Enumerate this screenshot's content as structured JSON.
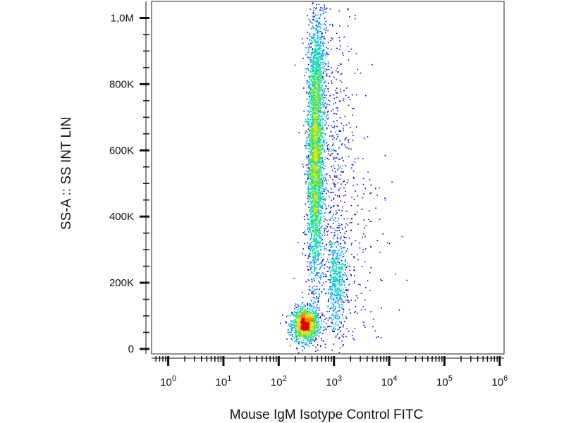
{
  "chart_data": {
    "type": "scatter",
    "title": "",
    "xlabel": "Mouse IgM Isotype Control FITC",
    "ylabel": "SS-A :: SS INT LIN",
    "x_scale": "log",
    "xlim": [
      0.5,
      1200000
    ],
    "ylim": [
      -15000,
      1050000
    ],
    "x_ticks": [
      {
        "base": "10",
        "exp": "0",
        "value": 1
      },
      {
        "base": "10",
        "exp": "1",
        "value": 10
      },
      {
        "base": "10",
        "exp": "2",
        "value": 100
      },
      {
        "base": "10",
        "exp": "3",
        "value": 1000
      },
      {
        "base": "10",
        "exp": "4",
        "value": 10000
      },
      {
        "base": "10",
        "exp": "5",
        "value": 100000
      },
      {
        "base": "10",
        "exp": "6",
        "value": 1000000
      }
    ],
    "y_ticks": [
      {
        "label": "0",
        "value": 0
      },
      {
        "label": "200K",
        "value": 200000
      },
      {
        "label": "400K",
        "value": 400000
      },
      {
        "label": "600K",
        "value": 600000
      },
      {
        "label": "800K",
        "value": 800000
      },
      {
        "label": "1,0M",
        "value": 1000000
      }
    ],
    "grid": false,
    "legend": "none",
    "colormap": [
      "#0000e0",
      "#00a0ff",
      "#00e0a0",
      "#60e040",
      "#e0e000",
      "#ff8000",
      "#e00000"
    ],
    "populations": [
      {
        "cx": 300,
        "cy": 75000,
        "sx": 0.12,
        "sy": 25000,
        "n": 1400
      },
      {
        "cx": 450,
        "cy": 560000,
        "sx": 0.07,
        "sy": 180000,
        "n": 2600
      },
      {
        "cx": 500,
        "cy": 820000,
        "sx": 0.09,
        "sy": 120000,
        "n": 700
      },
      {
        "cx": 1100,
        "cy": 200000,
        "sx": 0.09,
        "sy": 70000,
        "n": 450
      },
      {
        "cx": 900,
        "cy": 500000,
        "sx": 0.22,
        "sy": 300000,
        "n": 700
      },
      {
        "cx": 2500,
        "cy": 250000,
        "sx": 0.35,
        "sy": 200000,
        "n": 180
      }
    ]
  }
}
